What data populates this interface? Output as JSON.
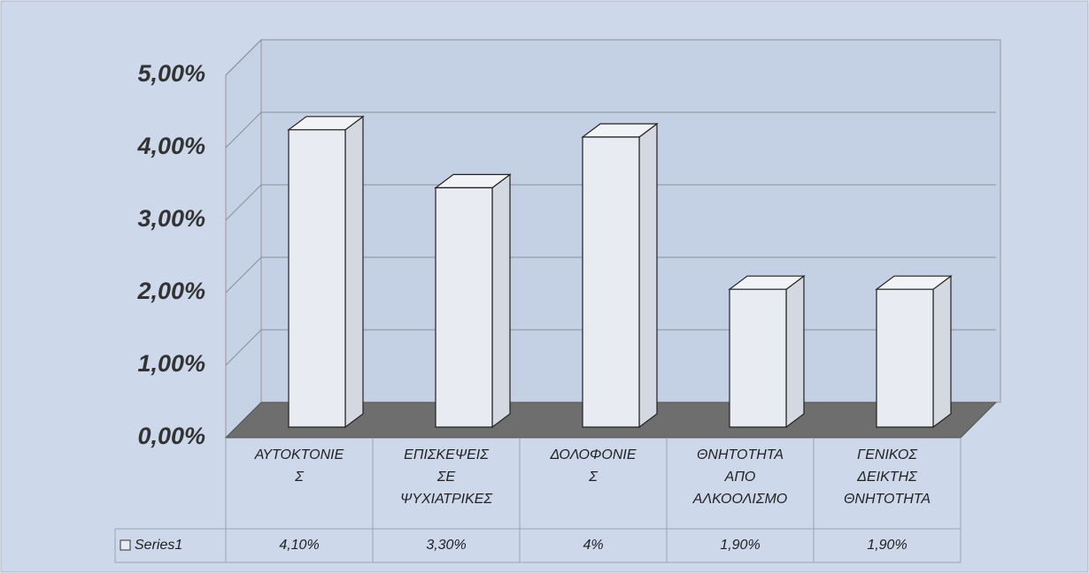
{
  "chart_data": {
    "type": "bar3d",
    "categories": [
      [
        "ΑΥΤΟΚΤΟΝΙΕ",
        "Σ"
      ],
      [
        "ΕΠΙΣΚΕΨΕΙΣ",
        "ΣΕ",
        "ΨΥΧΙΑΤΡΙΚΕΣ"
      ],
      [
        "ΔΟΛΟΦΟΝΙΕ",
        "Σ"
      ],
      [
        "ΘΝΗΤΟΤΗΤΑ",
        "ΑΠΟ",
        "ΑΛΚΟΟΛΙΣΜΟ"
      ],
      [
        "ΓΕΝΙΚΟΣ",
        "ΔΕΙΚΤΗΣ",
        "ΘΝΗΤΟΤΗΤΑ"
      ]
    ],
    "series": [
      {
        "name": "Series1",
        "color": "#e8ebf2",
        "values": [
          4.1,
          3.3,
          4,
          1.9,
          1.9
        ],
        "value_labels": [
          "4,10%",
          "3,30%",
          "4%",
          "1,90%",
          "1,90%"
        ]
      }
    ],
    "ylim": [
      0,
      5
    ],
    "yticks": [
      {
        "value": 0,
        "label": "0,00%"
      },
      {
        "value": 1,
        "label": "1,00%"
      },
      {
        "value": 2,
        "label": "2,00%"
      },
      {
        "value": 3,
        "label": "3,00%"
      },
      {
        "value": 4,
        "label": "4,00%"
      },
      {
        "value": 5,
        "label": "5,00%"
      }
    ],
    "grid": true,
    "data_table": true
  }
}
